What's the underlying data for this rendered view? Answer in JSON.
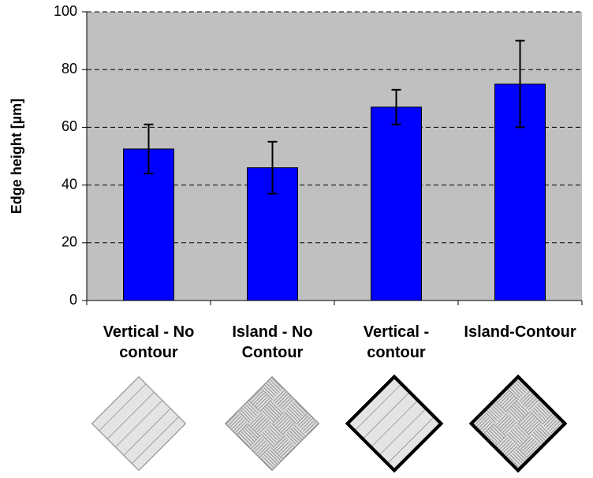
{
  "chart_data": {
    "type": "bar",
    "y_label": "Edge height [µm]",
    "categories": [
      "Vertical - No contour",
      "Island - No Contour",
      "Vertical - contour",
      "Island-Contour"
    ],
    "values": [
      52.5,
      46,
      67,
      75
    ],
    "errors": [
      8.5,
      9,
      6,
      15
    ],
    "color": "#0000ff",
    "ylim": [
      0,
      100
    ],
    "yticks": [
      0,
      20,
      40,
      60,
      80,
      100
    ],
    "grid": true
  }
}
